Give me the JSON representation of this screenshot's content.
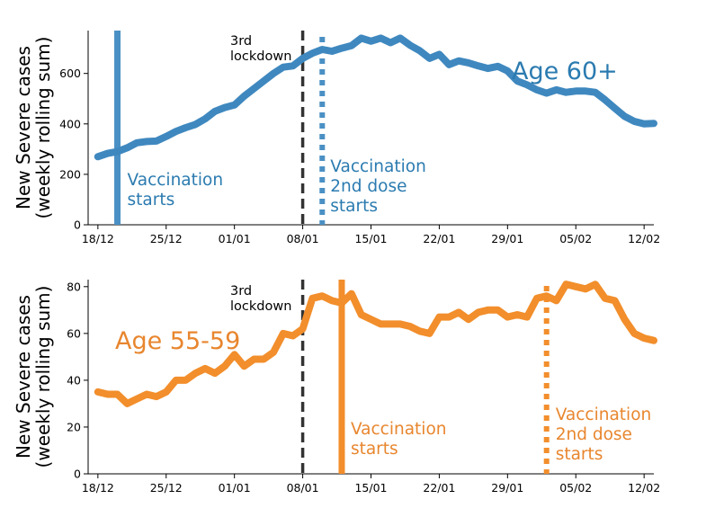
{
  "chart_data": [
    {
      "type": "line",
      "panel": "top",
      "ylabel": "New Severe cases\n(weekly rolling sum)",
      "x_tick_labels": [
        "18/12",
        "25/12",
        "01/01",
        "08/01",
        "15/01",
        "22/01",
        "29/01",
        "05/02",
        "12/02"
      ],
      "y_ticks": [
        0,
        200,
        400,
        600
      ],
      "ylim": [
        0,
        770
      ],
      "x_range_days": [
        -1,
        57
      ],
      "series": [
        {
          "name": "Age 60+",
          "color": "#3f88bf",
          "x_days": [
            0,
            1,
            2,
            3,
            4,
            5,
            6,
            7,
            8,
            9,
            10,
            11,
            12,
            13,
            14,
            15,
            16,
            17,
            18,
            19,
            20,
            21,
            22,
            23,
            24,
            25,
            26,
            27,
            28,
            29,
            30,
            31,
            32,
            33,
            34,
            35,
            36,
            37,
            38,
            39,
            40,
            41,
            42,
            43,
            44,
            45,
            46,
            47,
            48,
            49,
            50,
            51,
            52,
            53,
            54,
            55,
            56,
            57
          ],
          "values": [
            270,
            283,
            290,
            305,
            325,
            330,
            332,
            350,
            370,
            385,
            398,
            420,
            450,
            465,
            475,
            510,
            540,
            570,
            600,
            625,
            630,
            660,
            680,
            695,
            688,
            700,
            710,
            740,
            728,
            740,
            722,
            740,
            712,
            690,
            660,
            676,
            635,
            650,
            642,
            630,
            620,
            628,
            610,
            570,
            555,
            535,
            522,
            535,
            525,
            530,
            530,
            525,
            495,
            462,
            430,
            410,
            400,
            402
          ]
        }
      ],
      "annotations": {
        "lockdown_label": "3rd\nlockdown",
        "lockdown_day": 21,
        "vaccination_label": "Vaccination\nstarts",
        "vaccination_day": 2,
        "second_dose_label": "Vaccination\n2nd dose\nstarts",
        "second_dose_day": 23,
        "series_label": "Age 60+"
      }
    },
    {
      "type": "line",
      "panel": "bottom",
      "ylabel": "New Severe cases\n(weekly rolling sum)",
      "x_tick_labels": [
        "18/12",
        "25/12",
        "01/01",
        "08/01",
        "15/01",
        "22/01",
        "29/01",
        "05/02",
        "12/02"
      ],
      "y_ticks": [
        0,
        20,
        40,
        60,
        80
      ],
      "ylim": [
        0,
        83
      ],
      "x_range_days": [
        -1,
        57
      ],
      "series": [
        {
          "name": "Age 55-59",
          "color": "#f28e2b",
          "x_days": [
            0,
            1,
            2,
            3,
            4,
            5,
            6,
            7,
            8,
            9,
            10,
            11,
            12,
            13,
            14,
            15,
            16,
            17,
            18,
            19,
            20,
            21,
            22,
            23,
            24,
            25,
            26,
            27,
            28,
            29,
            30,
            31,
            32,
            33,
            34,
            35,
            36,
            37,
            38,
            39,
            40,
            41,
            42,
            43,
            44,
            45,
            46,
            47,
            48,
            49,
            50,
            51,
            52,
            53,
            54,
            55,
            56,
            57
          ],
          "values": [
            35,
            34,
            34,
            30,
            32,
            34,
            33,
            35,
            40,
            40,
            43,
            45,
            43,
            46,
            51,
            46,
            49,
            49,
            52,
            60,
            59,
            62,
            75,
            76,
            74,
            73,
            77,
            68,
            66,
            64,
            64,
            64,
            63,
            61,
            60,
            67,
            67,
            69,
            66,
            69,
            70,
            70,
            67,
            68,
            67,
            75,
            76,
            74,
            81,
            80,
            79,
            81,
            75,
            74,
            66,
            60,
            58,
            57
          ]
        }
      ],
      "annotations": {
        "lockdown_label": "3rd\nlockdown",
        "lockdown_day": 21,
        "vaccination_label": "Vaccination\nstarts",
        "vaccination_day": 25,
        "second_dose_label": "Vaccination\n2nd dose\nstarts",
        "second_dose_day": 46,
        "series_label": "Age 55-59"
      }
    }
  ],
  "colors": {
    "blue_line": "#3f88bf",
    "blue_text": "#2b7bb0",
    "blue_vline": "#4a90c4",
    "orange_line": "#f28e2b",
    "orange_text": "#e8862e",
    "lockdown_line": "#333333",
    "axis": "#000000"
  }
}
